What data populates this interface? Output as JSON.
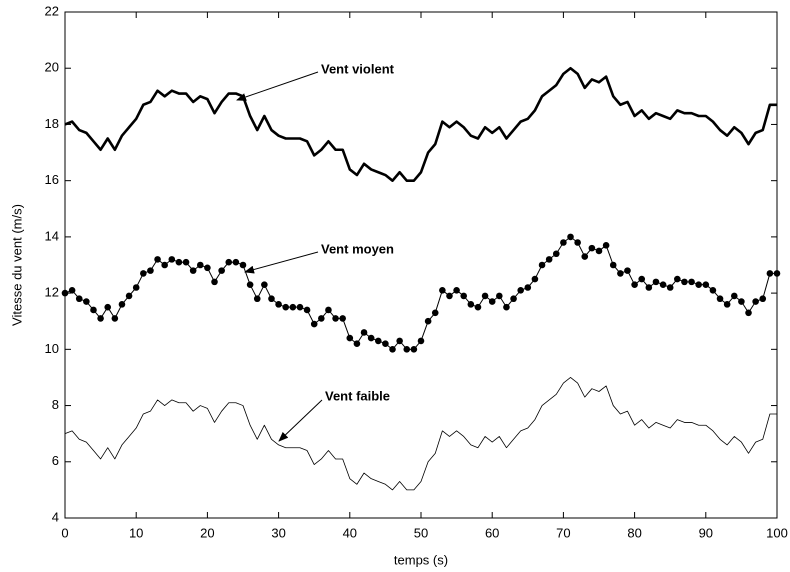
{
  "chart_data": {
    "type": "line",
    "xlabel": "temps (s)",
    "ylabel": "Vitesse du vent (m/s)",
    "x": [
      0,
      1,
      2,
      3,
      4,
      5,
      6,
      7,
      8,
      9,
      10,
      11,
      12,
      13,
      14,
      15,
      16,
      17,
      18,
      19,
      20,
      21,
      22,
      23,
      24,
      25,
      26,
      27,
      28,
      29,
      30,
      31,
      32,
      33,
      34,
      35,
      36,
      37,
      38,
      39,
      40,
      41,
      42,
      43,
      44,
      45,
      46,
      47,
      48,
      49,
      50,
      51,
      52,
      53,
      54,
      55,
      56,
      57,
      58,
      59,
      60,
      61,
      62,
      63,
      64,
      65,
      66,
      67,
      68,
      69,
      70,
      71,
      72,
      73,
      74,
      75,
      76,
      77,
      78,
      79,
      80,
      81,
      82,
      83,
      84,
      85,
      86,
      87,
      88,
      89,
      90,
      91,
      92,
      93,
      94,
      95,
      96,
      97,
      98,
      99,
      100
    ],
    "series": [
      {
        "color": "#000000",
        "values": [
          18.0,
          18.1,
          17.8,
          17.7,
          17.4,
          17.1,
          17.5,
          17.1,
          17.6,
          17.9,
          18.2,
          18.7,
          18.8,
          19.2,
          19.0,
          19.2,
          19.1,
          19.1,
          18.8,
          19.0,
          18.9,
          18.4,
          18.8,
          19.1,
          19.1,
          19.0,
          18.3,
          17.8,
          18.3,
          17.8,
          17.6,
          17.5,
          17.5,
          17.5,
          17.4,
          16.9,
          17.1,
          17.4,
          17.1,
          17.1,
          16.4,
          16.2,
          16.6,
          16.4,
          16.3,
          16.2,
          16.0,
          16.3,
          16.0,
          16.0,
          16.3,
          17.0,
          17.3,
          18.1,
          17.9,
          18.1,
          17.9,
          17.6,
          17.5,
          17.9,
          17.7,
          17.9,
          17.5,
          17.8,
          18.1,
          18.2,
          18.5,
          19.0,
          19.2,
          19.4,
          19.8,
          20.0,
          19.8,
          19.3,
          19.6,
          19.5,
          19.7,
          19.0,
          18.7,
          18.8,
          18.3,
          18.5,
          18.2,
          18.4,
          18.3,
          18.2,
          18.5,
          18.4,
          18.4,
          18.3,
          18.3,
          18.1,
          17.8,
          17.6,
          17.9,
          17.7,
          17.3,
          17.7,
          17.8,
          18.7,
          18.7
        ]
      },
      {
        "color": "#000000",
        "marker": "o",
        "values": [
          12.0,
          12.1,
          11.8,
          11.7,
          11.4,
          11.1,
          11.5,
          11.1,
          11.6,
          11.9,
          12.2,
          12.7,
          12.8,
          13.2,
          13.0,
          13.2,
          13.1,
          13.1,
          12.8,
          13.0,
          12.9,
          12.4,
          12.8,
          13.1,
          13.1,
          13.0,
          12.3,
          11.8,
          12.3,
          11.8,
          11.6,
          11.5,
          11.5,
          11.5,
          11.4,
          10.9,
          11.1,
          11.4,
          11.1,
          11.1,
          10.4,
          10.2,
          10.6,
          10.4,
          10.3,
          10.2,
          10.0,
          10.3,
          10.0,
          10.0,
          10.3,
          11.0,
          11.3,
          12.1,
          11.9,
          12.1,
          11.9,
          11.6,
          11.5,
          11.9,
          11.7,
          11.9,
          11.5,
          11.8,
          12.1,
          12.2,
          12.5,
          13.0,
          13.2,
          13.4,
          13.8,
          14.0,
          13.8,
          13.3,
          13.6,
          13.5,
          13.7,
          13.0,
          12.7,
          12.8,
          12.3,
          12.5,
          12.2,
          12.4,
          12.3,
          12.2,
          12.5,
          12.4,
          12.4,
          12.3,
          12.3,
          12.1,
          11.8,
          11.6,
          11.9,
          11.7,
          11.3,
          11.7,
          11.8,
          12.7,
          12.7
        ]
      },
      {
        "color": "#000000",
        "values": [
          7.0,
          7.1,
          6.8,
          6.7,
          6.4,
          6.1,
          6.5,
          6.1,
          6.6,
          6.9,
          7.2,
          7.7,
          7.8,
          8.2,
          8.0,
          8.2,
          8.1,
          8.1,
          7.8,
          8.0,
          7.9,
          7.4,
          7.8,
          8.1,
          8.1,
          8.0,
          7.3,
          6.8,
          7.3,
          6.8,
          6.6,
          6.5,
          6.5,
          6.5,
          6.4,
          5.9,
          6.1,
          6.4,
          6.1,
          6.1,
          5.4,
          5.2,
          5.6,
          5.4,
          5.3,
          5.2,
          5.0,
          5.3,
          5.0,
          5.0,
          5.3,
          6.0,
          6.3,
          7.1,
          6.9,
          7.1,
          6.9,
          6.6,
          6.5,
          6.9,
          6.7,
          6.9,
          6.5,
          6.8,
          7.1,
          7.2,
          7.5,
          8.0,
          8.2,
          8.4,
          8.8,
          9.0,
          8.8,
          8.3,
          8.6,
          8.5,
          8.7,
          8.0,
          7.7,
          7.8,
          7.3,
          7.5,
          7.2,
          7.4,
          7.3,
          7.2,
          7.5,
          7.4,
          7.4,
          7.3,
          7.3,
          7.1,
          6.8,
          6.6,
          6.9,
          6.7,
          6.3,
          6.7,
          6.8,
          7.7,
          7.7
        ]
      }
    ],
    "annotations": [
      "Vent violent",
      "Vent moyen",
      "Vent faible"
    ],
    "xlim": [
      0,
      100
    ],
    "xticks": [
      0,
      10,
      20,
      30,
      40,
      50,
      60,
      70,
      80,
      90,
      100
    ],
    "ylim": [
      4,
      22
    ],
    "yticks": [
      4,
      6,
      8,
      10,
      12,
      14,
      16,
      18,
      20,
      22
    ]
  }
}
